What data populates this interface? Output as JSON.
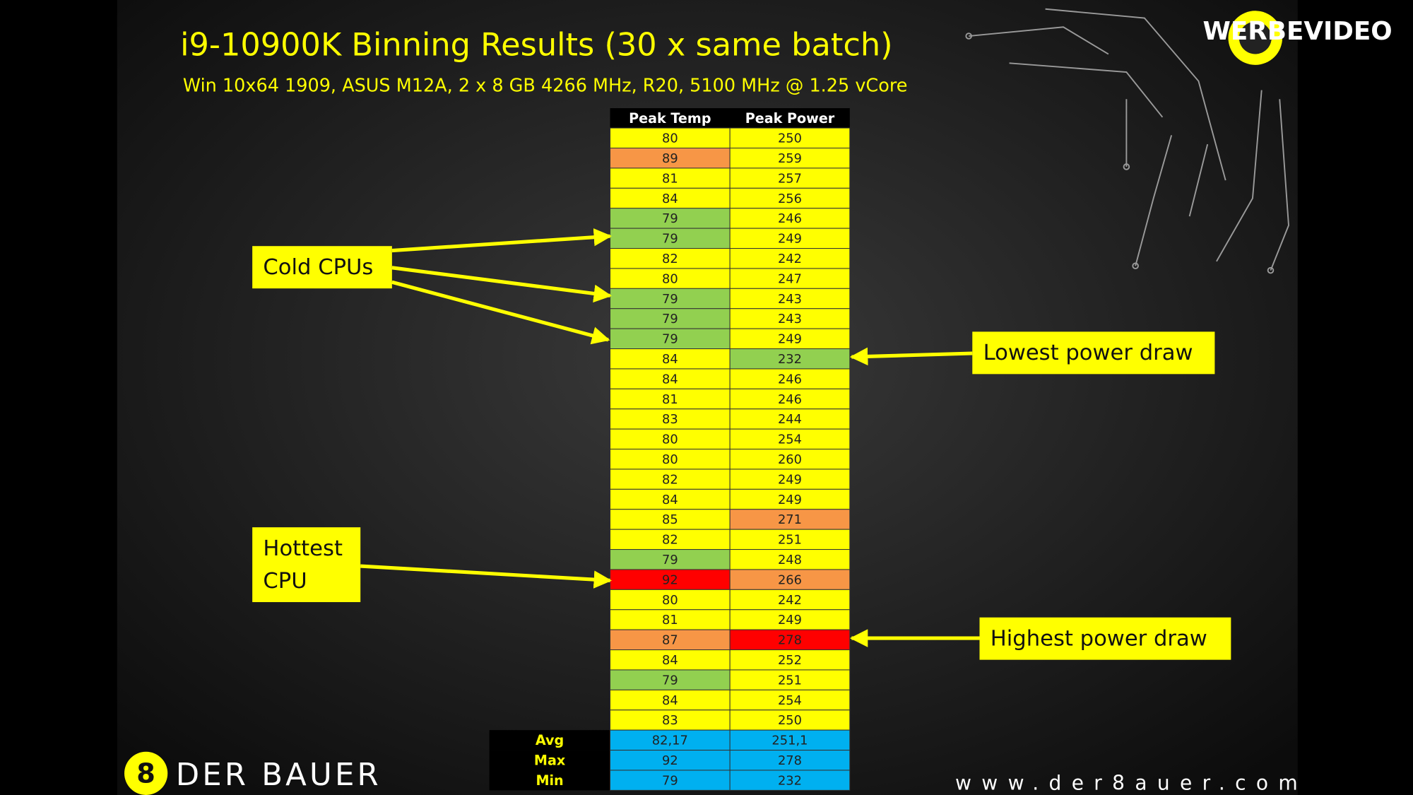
{
  "header": {
    "title": "i9-10900K Binning Results (30 x same batch)",
    "subtitle": "Win 10x64 1909, ASUS M12A, 2 x 8 GB 4266 MHz, R20, 5100 MHz @ 1.25 vCore"
  },
  "table": {
    "columns": [
      "Peak Temp",
      "Peak Power"
    ],
    "rows": [
      [
        80,
        250
      ],
      [
        89,
        259
      ],
      [
        81,
        257
      ],
      [
        84,
        256
      ],
      [
        79,
        246
      ],
      [
        79,
        249
      ],
      [
        82,
        242
      ],
      [
        80,
        247
      ],
      [
        79,
        243
      ],
      [
        79,
        243
      ],
      [
        79,
        249
      ],
      [
        84,
        232
      ],
      [
        84,
        246
      ],
      [
        81,
        246
      ],
      [
        83,
        244
      ],
      [
        80,
        254
      ],
      [
        80,
        260
      ],
      [
        82,
        249
      ],
      [
        84,
        249
      ],
      [
        85,
        271
      ],
      [
        82,
        251
      ],
      [
        79,
        248
      ],
      [
        92,
        266
      ],
      [
        80,
        242
      ],
      [
        81,
        249
      ],
      [
        87,
        278
      ],
      [
        84,
        252
      ],
      [
        79,
        251
      ],
      [
        84,
        254
      ],
      [
        83,
        250
      ]
    ],
    "fills": [
      [
        "#ffff00",
        "#ffff00"
      ],
      [
        "#f79646",
        "#ffff00"
      ],
      [
        "#ffff00",
        "#ffff00"
      ],
      [
        "#ffff00",
        "#ffff00"
      ],
      [
        "#92d050",
        "#ffff00"
      ],
      [
        "#92d050",
        "#ffff00"
      ],
      [
        "#ffff00",
        "#ffff00"
      ],
      [
        "#ffff00",
        "#ffff00"
      ],
      [
        "#92d050",
        "#ffff00"
      ],
      [
        "#92d050",
        "#ffff00"
      ],
      [
        "#92d050",
        "#ffff00"
      ],
      [
        "#ffff00",
        "#92d050"
      ],
      [
        "#ffff00",
        "#ffff00"
      ],
      [
        "#ffff00",
        "#ffff00"
      ],
      [
        "#ffff00",
        "#ffff00"
      ],
      [
        "#ffff00",
        "#ffff00"
      ],
      [
        "#ffff00",
        "#ffff00"
      ],
      [
        "#ffff00",
        "#ffff00"
      ],
      [
        "#ffff00",
        "#ffff00"
      ],
      [
        "#ffff00",
        "#f79646"
      ],
      [
        "#ffff00",
        "#ffff00"
      ],
      [
        "#92d050",
        "#ffff00"
      ],
      [
        "#ff0000",
        "#f79646"
      ],
      [
        "#ffff00",
        "#ffff00"
      ],
      [
        "#ffff00",
        "#ffff00"
      ],
      [
        "#f79646",
        "#ff0000"
      ],
      [
        "#ffff00",
        "#ffff00"
      ],
      [
        "#92d050",
        "#ffff00"
      ],
      [
        "#ffff00",
        "#ffff00"
      ],
      [
        "#ffff00",
        "#ffff00"
      ]
    ],
    "summary": {
      "labels": [
        "Avg",
        "Max",
        "Min"
      ],
      "rows": [
        [
          "82,17",
          "251,1"
        ],
        [
          92,
          278
        ],
        [
          79,
          232
        ]
      ],
      "fill": "#00b0f0"
    }
  },
  "callouts": [
    {
      "lines": [
        "Cold CPUs"
      ]
    },
    {
      "lines": [
        "Hottest",
        "CPU"
      ]
    },
    {
      "lines": [
        "Lowest power draw"
      ]
    },
    {
      "lines": [
        "Highest power draw"
      ]
    }
  ],
  "logos": {
    "watermark": "WERBEVIDEO",
    "brand_mark": "8",
    "brand": "DER BAUER",
    "url": "www.der8auer.com"
  }
}
